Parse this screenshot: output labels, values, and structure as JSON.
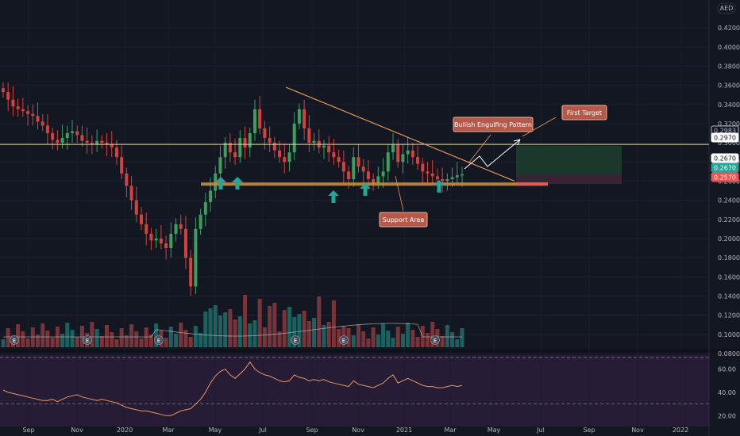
{
  "chart_data": [
    {
      "type": "candlestick",
      "currency_badge": "AED",
      "x_ticks": [
        "Sep",
        "Nov",
        "2020",
        "Mar",
        "May",
        "Jul",
        "Sep",
        "Nov",
        "2021",
        "Mar",
        "May",
        "Jul",
        "Sep",
        "Nov",
        "2022"
      ],
      "y_ticks": [
        "0.4200",
        "0.4000",
        "0.3800",
        "0.3600",
        "0.3400",
        "0.3200",
        "0.3000",
        "0.2800",
        "0.2600",
        "0.2400",
        "0.2200",
        "0.2000",
        "0.1800",
        "0.1600",
        "0.1400",
        "0.1200",
        "0.1000",
        "0.0800"
      ],
      "ylim": [
        0.07,
        0.43
      ],
      "price_tags": [
        {
          "label": "0.2983",
          "color": "#131722",
          "text_color": "#b2b5be",
          "value": 0.2983
        },
        {
          "label": "0.2970",
          "color": "#ffffff",
          "text_color": "#131722",
          "value": 0.297
        },
        {
          "label": "0.2670",
          "color": "#ffffff",
          "text_color": "#131722",
          "value": 0.267
        },
        {
          "label": "0.2670",
          "color": "#26a69a",
          "text_color": "#ffffff",
          "value": 0.26
        },
        {
          "label": "0.2570",
          "color": "#ef5350",
          "text_color": "#ffffff",
          "value": 0.252
        }
      ],
      "candles_close": [
        0.353,
        0.345,
        0.338,
        0.335,
        0.333,
        0.33,
        0.328,
        0.322,
        0.318,
        0.31,
        0.303,
        0.3,
        0.305,
        0.31,
        0.312,
        0.308,
        0.302,
        0.3,
        0.298,
        0.302,
        0.3,
        0.298,
        0.295,
        0.285,
        0.268,
        0.255,
        0.24,
        0.225,
        0.215,
        0.205,
        0.198,
        0.2,
        0.195,
        0.19,
        0.205,
        0.215,
        0.21,
        0.18,
        0.15,
        0.21,
        0.225,
        0.238,
        0.25,
        0.268,
        0.285,
        0.3,
        0.29,
        0.285,
        0.305,
        0.295,
        0.31,
        0.335,
        0.315,
        0.305,
        0.3,
        0.292,
        0.285,
        0.28,
        0.29,
        0.32,
        0.335,
        0.315,
        0.3,
        0.302,
        0.295,
        0.297,
        0.29,
        0.285,
        0.28,
        0.27,
        0.262,
        0.285,
        0.275,
        0.27,
        0.262,
        0.258,
        0.265,
        0.27,
        0.29,
        0.298,
        0.28,
        0.288,
        0.292,
        0.285,
        0.278,
        0.27,
        0.268,
        0.265,
        0.262,
        0.26,
        0.262,
        0.264,
        0.266,
        0.267
      ],
      "volume_bars": 94,
      "annotations": {
        "target": "First Target",
        "pattern": "Bullish Engulfing Pattern",
        "support": "Support Area",
        "event_marker": "E"
      },
      "rsi": {
        "y_ticks": [
          "60.00",
          "40.00",
          "20.00"
        ],
        "levels": [
          70,
          30
        ],
        "ylim": [
          12,
          72
        ],
        "values": [
          42,
          40,
          39,
          38,
          37,
          36,
          35,
          34,
          33,
          33,
          34,
          32,
          34,
          36,
          37,
          38,
          36,
          35,
          34,
          33,
          34,
          33,
          32,
          31,
          29,
          27,
          26,
          25,
          24,
          24,
          23,
          22,
          21,
          20,
          20,
          22,
          24,
          25,
          26,
          30,
          34,
          40,
          48,
          54,
          58,
          60,
          55,
          52,
          56,
          60,
          66,
          60,
          57,
          55,
          54,
          52,
          50,
          49,
          50,
          55,
          53,
          52,
          50,
          51,
          50,
          51,
          49,
          48,
          47,
          46,
          45,
          50,
          47,
          46,
          45,
          44,
          46,
          48,
          52,
          55,
          48,
          50,
          52,
          50,
          48,
          46,
          45,
          45,
          44,
          44,
          45,
          46,
          45,
          46
        ]
      }
    }
  ]
}
